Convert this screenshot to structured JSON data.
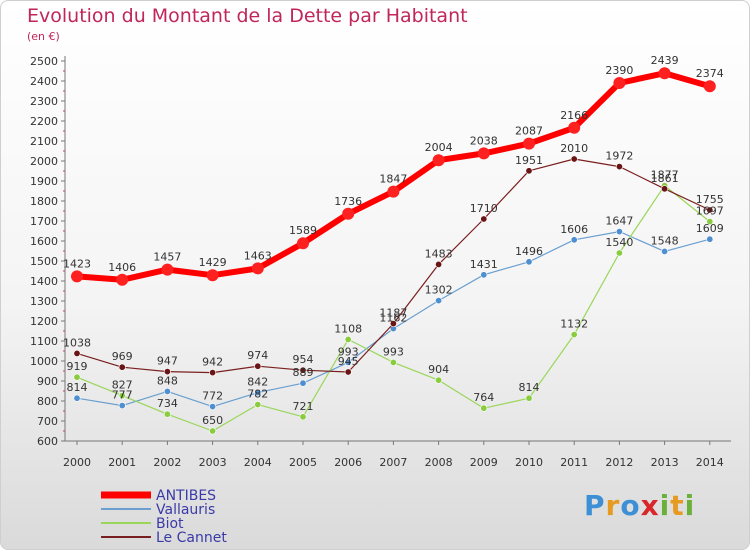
{
  "title": "Evolution du Montant de la Dette par Habitant",
  "subtitle": "(en €)",
  "logo": [
    "P",
    "r",
    "o",
    "x",
    "i",
    "t",
    "i"
  ],
  "chart_data": {
    "type": "line",
    "x": [
      "2000",
      "2001",
      "2002",
      "2003",
      "2004",
      "2005",
      "2006",
      "2007",
      "2008",
      "2009",
      "2010",
      "2011",
      "2012",
      "2013",
      "2014"
    ],
    "ylim": [
      600,
      2500
    ],
    "yticks": [
      600,
      700,
      800,
      900,
      1000,
      1100,
      1200,
      1300,
      1400,
      1500,
      1600,
      1700,
      1800,
      1900,
      2000,
      2100,
      2200,
      2300,
      2400,
      2500
    ],
    "grid": false,
    "legend_position": "bottom-left",
    "series": [
      {
        "name": "ANTIBES",
        "color": "#ff0000",
        "marker": "#ff2020",
        "width": 6,
        "values": [
          1423,
          1406,
          1457,
          1429,
          1463,
          1589,
          1736,
          1847,
          2004,
          2038,
          2087,
          2166,
          2390,
          2439,
          2374
        ],
        "labels": [
          "1423",
          "1406",
          "1457",
          "1429",
          "1463",
          "1589",
          "1736",
          "1847",
          "2004",
          "2038",
          "2087",
          "2166",
          "2390",
          "2439",
          "2374"
        ]
      },
      {
        "name": "Vallauris",
        "color": "#6a9fd0",
        "marker": "#4f8fd0",
        "width": 1.2,
        "values": [
          814,
          777,
          848,
          772,
          842,
          889,
          993,
          1162,
          1302,
          1431,
          1496,
          1606,
          1647,
          1548,
          1609
        ],
        "labels": [
          "814",
          "777",
          "848",
          "772",
          "842",
          "889",
          "993",
          "1162",
          "1302",
          "1431",
          "1496",
          "1606",
          "1647",
          "1548",
          "1609"
        ]
      },
      {
        "name": "Biot",
        "color": "#9ad65a",
        "marker": "#8acc3f",
        "width": 1.2,
        "values": [
          919,
          827,
          734,
          650,
          782,
          721,
          1108,
          993,
          904,
          764,
          814,
          1132,
          1540,
          1877,
          1697
        ],
        "labels": [
          "919",
          "827",
          "734",
          "650",
          "782",
          "721",
          "1108",
          "993",
          "904",
          "764",
          "814",
          "1132",
          "1540",
          "1877",
          "1697"
        ]
      },
      {
        "name": "Le Cannet",
        "color": "#7a1f1f",
        "marker": "#6a1515",
        "width": 1.2,
        "values": [
          1038,
          969,
          947,
          942,
          974,
          954,
          945,
          1187,
          1483,
          1710,
          1951,
          2010,
          1972,
          1861,
          1755
        ],
        "labels": [
          "1038",
          "969",
          "947",
          "942",
          "974",
          "954",
          "945",
          "1187",
          "1483",
          "1710",
          "1951",
          "2010",
          "1972",
          "1861",
          "1755"
        ]
      }
    ]
  }
}
